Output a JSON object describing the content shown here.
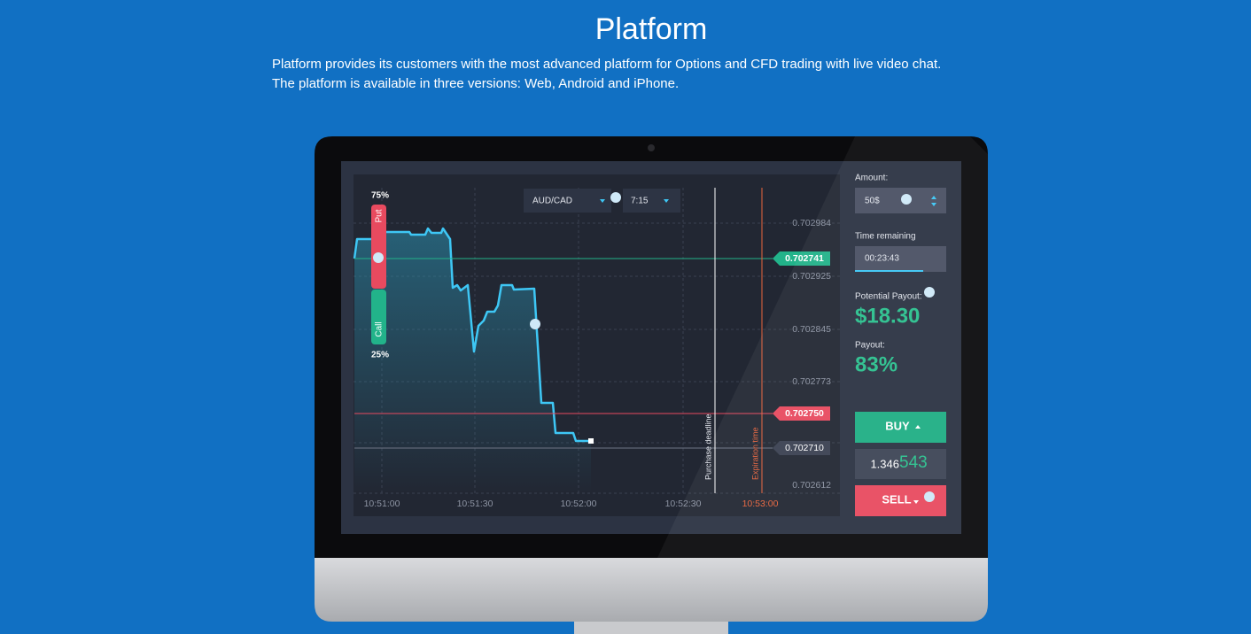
{
  "header": {
    "title": "Platform",
    "description": [
      "Platform provides its customers with the most advanced platform for Options and CFD trading with live video chat.",
      "The platform is available in three versions: Web, Android and iPhone."
    ]
  },
  "trading": {
    "chart": {
      "put_percent": "75%",
      "put_label": "Put",
      "call_label": "Call",
      "call_percent": "25%",
      "pair": "AUD/CAD",
      "duration": "7:15",
      "price_ticks": [
        "0.702984",
        "0.702925",
        "0.702845",
        "0.702773",
        "0.702612"
      ],
      "time_ticks": [
        "10:51:00",
        "10:51:30",
        "10:52:00",
        "10:52:30",
        "10:53:00"
      ],
      "tags": [
        "0.702741",
        "0.702750",
        "0.702710"
      ],
      "purchase_deadline": "Purchase deadline",
      "expiration_time": "Expiration time"
    },
    "panel": {
      "amount_label": "Amount:",
      "amount": "50$",
      "time_label": "Time remaining",
      "time": "00:23:43",
      "potential_label": "Potential Payout:",
      "potential": "$18.30",
      "payout_label": "Payout:",
      "payout": "83%",
      "buy": "BUY",
      "price_main": "1.346",
      "price_pips": "543",
      "sell": "SELL"
    }
  }
}
